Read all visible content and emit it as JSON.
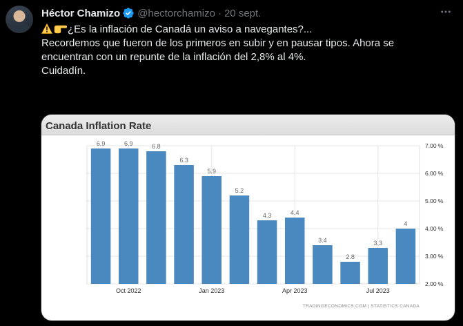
{
  "tweet": {
    "display_name": "Héctor Chamizo",
    "handle": "@hectorchamizo",
    "separator": "·",
    "time": "20 sept.",
    "lines": [
      "¿Es la inflación de Canadá un aviso a navegantes?...",
      "Recordemos que fueron de los primeros en subir y en pausar tipos. Ahora se",
      "encuentran con un repunte de la inflación del 2,8% al 4%.",
      "Cuidadín."
    ],
    "icons": {
      "leading_emoji": [
        "warning-emoji",
        "pointing-hand-emoji"
      ],
      "verified": "verified-badge-icon",
      "more": "more-icon"
    },
    "colors": {
      "background": "#000000",
      "text": "#e7e9ea",
      "muted": "#71767b",
      "verified": "#1d9bf0"
    }
  },
  "chart_data": {
    "type": "bar",
    "title": "Canada Inflation Rate",
    "values": [
      6.9,
      6.9,
      6.8,
      6.3,
      5.9,
      5.2,
      4.3,
      4.4,
      3.4,
      2.8,
      3.3,
      4
    ],
    "data_labels": [
      "6.9",
      "6.9",
      "6.8",
      "6.3",
      "5.9",
      "5.2",
      "4.3",
      "4.4",
      "3.4",
      "2.8",
      "3.3",
      "4"
    ],
    "x_tick_labels": [
      "Oct 2022",
      "Jan 2023",
      "Apr 2023",
      "Jul 2023"
    ],
    "y_tick_labels": [
      "7.00 %",
      "6.00 %",
      "5.00 %",
      "4.00 %",
      "3.00 %",
      "2.00 %"
    ],
    "ylim": [
      2,
      7
    ],
    "grid": true,
    "bar_color": "#4a88c0",
    "source": "TRADINGECONOMICS.COM  |  STATISTICS CANADA"
  }
}
